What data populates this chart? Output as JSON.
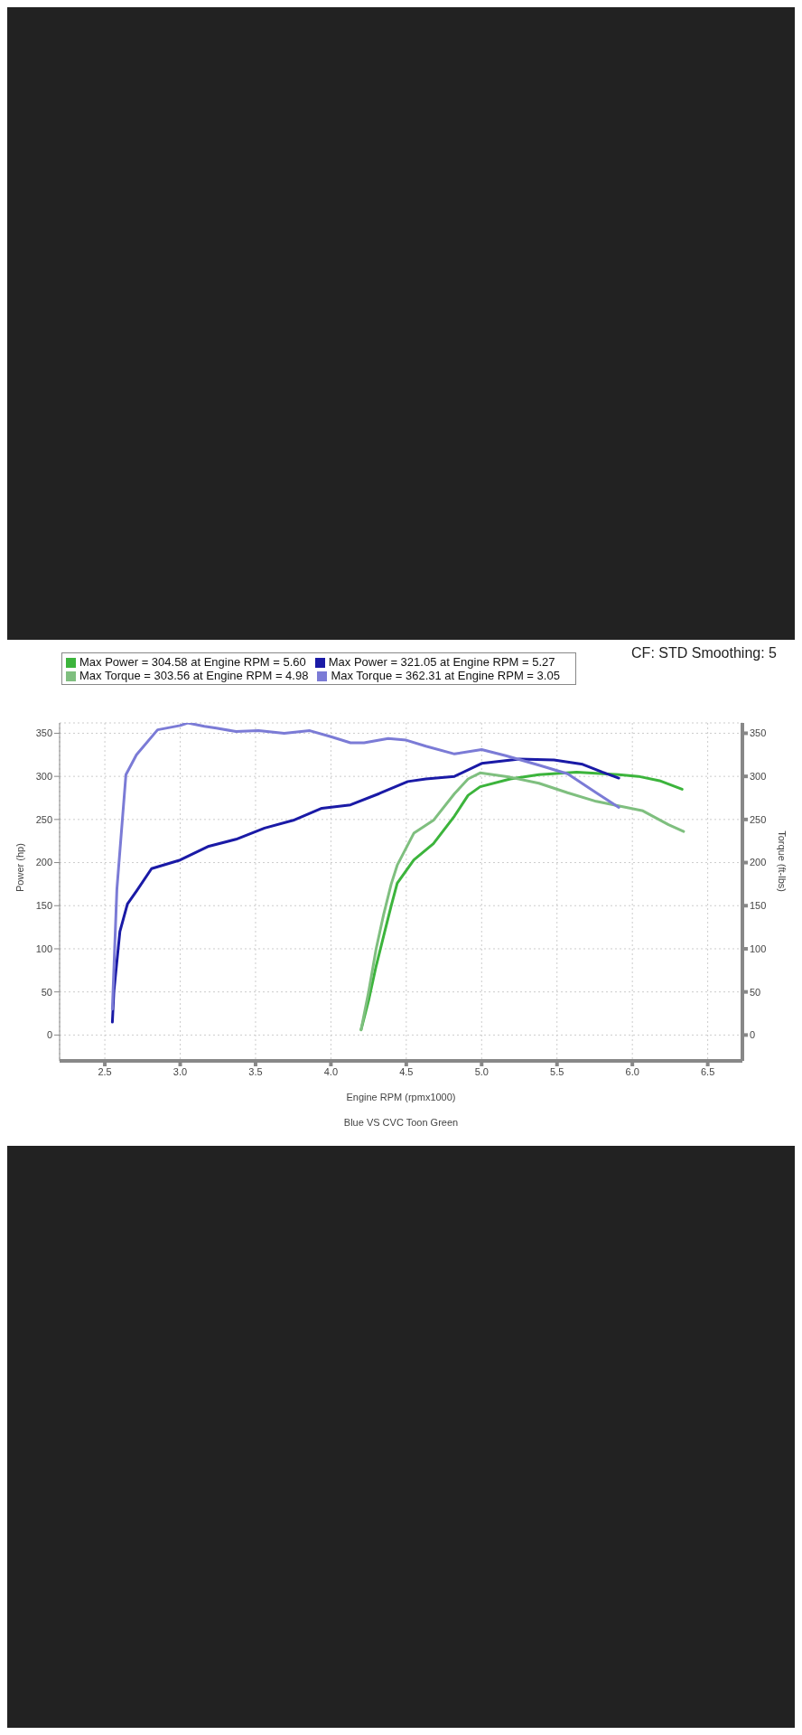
{
  "chart_data": {
    "type": "line",
    "xlabel": "Engine RPM (rpmx1000)",
    "ylabel": "Power (hp)",
    "y2label": "Torque (ft-lbs)",
    "annotations": [
      "CF: STD Smoothing: 5",
      "Blue VS CVC Toon Green"
    ],
    "xlim": [
      2.2,
      6.73
    ],
    "xticks": [
      {
        "value": 2.5,
        "label": "2.5"
      },
      {
        "value": 3,
        "label": "3.0"
      },
      {
        "value": 3.5,
        "label": "3.5"
      },
      {
        "value": 4,
        "label": "4.0"
      },
      {
        "value": 4.5,
        "label": "4.5"
      },
      {
        "value": 5,
        "label": "5.0"
      },
      {
        "value": 5.5,
        "label": "5.5"
      },
      {
        "value": 6,
        "label": "6.0"
      },
      {
        "value": 6.5,
        "label": "6.5"
      }
    ],
    "ylim": [
      -30,
      362
    ],
    "yticks": [
      0,
      50,
      100,
      150,
      200,
      250,
      300,
      350
    ],
    "y2lim": [
      -30,
      362
    ],
    "y2ticks": [
      0,
      50,
      100,
      150,
      200,
      250,
      300,
      350
    ],
    "grid": true,
    "legend": "top left",
    "marker": "none",
    "line_style": "solid",
    "series": [
      {
        "name": "Max Power = 304.58 at Engine RPM = 5.60",
        "color": "#3cb43c",
        "x": [
          4.2,
          4.25,
          4.3,
          4.35,
          4.4,
          4.44,
          4.55,
          4.68,
          4.82,
          4.91,
          4.99,
          5.19,
          5.38,
          5.63,
          5.91,
          6.04,
          6.18,
          6.33
        ],
        "values": [
          6,
          40,
          80,
          115,
          150,
          176,
          203,
          222,
          254,
          278,
          288,
          297,
          302,
          305,
          302,
          300,
          295,
          285
        ]
      },
      {
        "name": "Max Torque = 303.56 at Engine RPM = 4.98",
        "color": "#7fbf7f",
        "x": [
          4.2,
          4.25,
          4.3,
          4.35,
          4.4,
          4.44,
          4.55,
          4.68,
          4.82,
          4.91,
          4.99,
          5.19,
          5.38,
          5.57,
          5.76,
          6.07,
          6.24,
          6.34
        ],
        "values": [
          6,
          50,
          100,
          140,
          175,
          197,
          234,
          249,
          280,
          297,
          304,
          299,
          292,
          281,
          271,
          260,
          244,
          236
        ]
      },
      {
        "name": "Max Power = 321.05 at Engine RPM = 5.27",
        "color": "#1a1aa6",
        "x": [
          2.55,
          2.56,
          2.6,
          2.65,
          2.71,
          2.81,
          3.0,
          3.19,
          3.37,
          3.56,
          3.75,
          3.94,
          4.13,
          4.32,
          4.51,
          4.63,
          4.82,
          5.0,
          5.25,
          5.48,
          5.67,
          5.8,
          5.91
        ],
        "values": [
          15,
          50,
          120,
          152,
          167,
          193,
          203,
          219,
          227,
          240,
          249,
          263,
          267,
          280,
          294,
          297,
          300,
          315,
          320,
          319,
          314,
          305,
          298
        ]
      },
      {
        "name": "Max Torque = 362.31 at Engine RPM = 3.05",
        "color": "#7b7bd6",
        "x": [
          2.55,
          2.58,
          2.64,
          2.71,
          2.85,
          3.0,
          3.05,
          3.16,
          3.24,
          3.37,
          3.52,
          3.69,
          3.86,
          4.0,
          4.13,
          4.22,
          4.38,
          4.5,
          4.63,
          4.82,
          5.0,
          5.16,
          5.38,
          5.57,
          5.76,
          5.91
        ],
        "values": [
          30,
          169,
          302,
          325,
          354,
          359,
          362,
          358,
          356,
          352,
          353,
          350,
          353,
          346,
          339,
          339,
          344,
          342,
          335,
          326,
          331,
          324,
          313,
          303,
          281,
          264
        ]
      }
    ]
  }
}
